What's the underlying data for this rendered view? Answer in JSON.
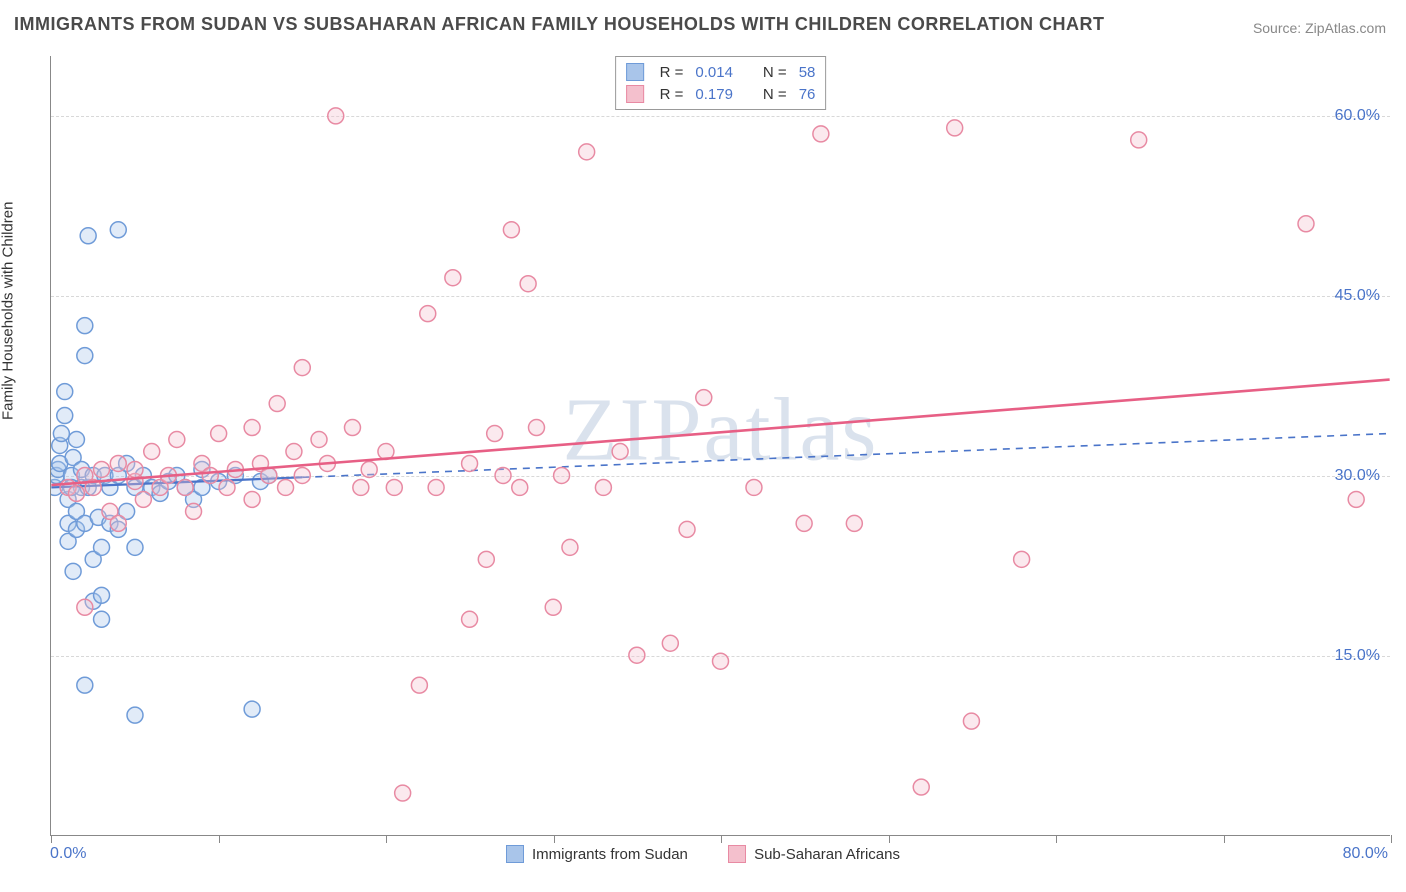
{
  "title": "IMMIGRANTS FROM SUDAN VS SUBSAHARAN AFRICAN FAMILY HOUSEHOLDS WITH CHILDREN CORRELATION CHART",
  "source_label": "Source:",
  "source_name": "ZipAtlas.com",
  "watermark": "ZIPatlas",
  "ylabel": "Family Households with Children",
  "chart": {
    "type": "scatter",
    "xlim": [
      0,
      80
    ],
    "ylim": [
      0,
      65
    ],
    "x_tick_positions": [
      0,
      10,
      20,
      30,
      40,
      50,
      60,
      70,
      80
    ],
    "x_axis_labels": {
      "left": "0.0%",
      "right": "80.0%"
    },
    "y_ticks": [
      {
        "v": 15,
        "label": "15.0%"
      },
      {
        "v": 30,
        "label": "30.0%"
      },
      {
        "v": 45,
        "label": "45.0%"
      },
      {
        "v": 60,
        "label": "60.0%"
      }
    ],
    "background_color": "#ffffff",
    "grid_color": "#d8d8d8",
    "axis_color": "#888888",
    "tick_label_color": "#4a74c9",
    "marker_radius": 8,
    "marker_fill_opacity": 0.35,
    "marker_stroke_width": 1.5,
    "series": [
      {
        "name": "Immigrants from Sudan",
        "color_fill": "#a9c5ea",
        "color_stroke": "#6f9bd8",
        "R": "0.014",
        "N": "58",
        "trend": {
          "solid_to_x": 15,
          "y0": 29.0,
          "y80": 33.5,
          "solid_color": "#4a74c9",
          "dash_color": "#4a74c9",
          "width": 2.2
        },
        "points": [
          [
            0.2,
            29
          ],
          [
            0.3,
            30
          ],
          [
            0.4,
            30.5
          ],
          [
            0.5,
            31
          ],
          [
            0.5,
            32.5
          ],
          [
            0.6,
            33.5
          ],
          [
            0.8,
            35
          ],
          [
            0.8,
            37
          ],
          [
            1.0,
            28
          ],
          [
            1.0,
            26
          ],
          [
            1.0,
            24.5
          ],
          [
            1.2,
            30
          ],
          [
            1.2,
            29
          ],
          [
            1.3,
            22
          ],
          [
            1.3,
            31.5
          ],
          [
            1.5,
            27
          ],
          [
            1.5,
            33
          ],
          [
            1.5,
            25.5
          ],
          [
            1.8,
            29
          ],
          [
            1.8,
            30.5
          ],
          [
            2.0,
            40
          ],
          [
            2.0,
            42.5
          ],
          [
            2.0,
            26
          ],
          [
            2.0,
            12.5
          ],
          [
            2.2,
            50
          ],
          [
            2.2,
            29
          ],
          [
            2.5,
            19.5
          ],
          [
            2.5,
            30
          ],
          [
            2.5,
            23
          ],
          [
            2.8,
            26.5
          ],
          [
            3.0,
            20
          ],
          [
            3.0,
            24
          ],
          [
            3.0,
            18
          ],
          [
            3.2,
            30
          ],
          [
            3.5,
            29
          ],
          [
            3.5,
            26
          ],
          [
            4.0,
            25.5
          ],
          [
            4.0,
            30
          ],
          [
            4.0,
            50.5
          ],
          [
            4.5,
            27
          ],
          [
            4.5,
            31
          ],
          [
            5.0,
            29
          ],
          [
            5.0,
            10
          ],
          [
            5.0,
            24
          ],
          [
            5.5,
            30
          ],
          [
            6.0,
            29
          ],
          [
            6.5,
            28.5
          ],
          [
            7.0,
            29.5
          ],
          [
            7.5,
            30
          ],
          [
            8.0,
            29
          ],
          [
            8.5,
            28
          ],
          [
            9.0,
            30.5
          ],
          [
            9.0,
            29
          ],
          [
            10.0,
            29.5
          ],
          [
            11.0,
            30
          ],
          [
            12.0,
            10.5
          ],
          [
            12.5,
            29.5
          ],
          [
            13.0,
            30
          ]
        ]
      },
      {
        "name": "Sub-Saharan Africans",
        "color_fill": "#f4c0cd",
        "color_stroke": "#e88aa3",
        "R": "0.179",
        "N": "76",
        "trend": {
          "solid_to_x": 80,
          "y0": 29.2,
          "y80": 38.0,
          "solid_color": "#e75f85",
          "width": 2.6
        },
        "points": [
          [
            1.0,
            29
          ],
          [
            1.5,
            28.5
          ],
          [
            2.0,
            19
          ],
          [
            2.0,
            30
          ],
          [
            2.5,
            29
          ],
          [
            3.0,
            30.5
          ],
          [
            3.5,
            27
          ],
          [
            4.0,
            31
          ],
          [
            4.0,
            26
          ],
          [
            5.0,
            29.5
          ],
          [
            5.0,
            30.5
          ],
          [
            5.5,
            28
          ],
          [
            6.0,
            32
          ],
          [
            6.5,
            29
          ],
          [
            7.0,
            30
          ],
          [
            7.5,
            33
          ],
          [
            8.0,
            29
          ],
          [
            8.5,
            27
          ],
          [
            9.0,
            31
          ],
          [
            9.5,
            30
          ],
          [
            10.0,
            33.5
          ],
          [
            10.5,
            29
          ],
          [
            11.0,
            30.5
          ],
          [
            12.0,
            34
          ],
          [
            12.0,
            28
          ],
          [
            12.5,
            31
          ],
          [
            13.0,
            30
          ],
          [
            13.5,
            36
          ],
          [
            14.0,
            29
          ],
          [
            14.5,
            32
          ],
          [
            15.0,
            39
          ],
          [
            15.0,
            30
          ],
          [
            16.0,
            33
          ],
          [
            16.5,
            31
          ],
          [
            17.0,
            60
          ],
          [
            18.0,
            34
          ],
          [
            18.5,
            29
          ],
          [
            19.0,
            30.5
          ],
          [
            20.0,
            32
          ],
          [
            20.5,
            29
          ],
          [
            21.0,
            3.5
          ],
          [
            22.0,
            12.5
          ],
          [
            22.5,
            43.5
          ],
          [
            23.0,
            29
          ],
          [
            24.0,
            46.5
          ],
          [
            25.0,
            18
          ],
          [
            25.0,
            31
          ],
          [
            26.0,
            23
          ],
          [
            26.5,
            33.5
          ],
          [
            27.0,
            30
          ],
          [
            27.5,
            50.5
          ],
          [
            28.0,
            29
          ],
          [
            28.5,
            46
          ],
          [
            29.0,
            34
          ],
          [
            30.0,
            19
          ],
          [
            30.5,
            30
          ],
          [
            31.0,
            24
          ],
          [
            32.0,
            57
          ],
          [
            33.0,
            29
          ],
          [
            34.0,
            32
          ],
          [
            35.0,
            15
          ],
          [
            37.0,
            16
          ],
          [
            38.0,
            25.5
          ],
          [
            39.0,
            36.5
          ],
          [
            40.0,
            14.5
          ],
          [
            42.0,
            29
          ],
          [
            45.0,
            26
          ],
          [
            46.0,
            58.5
          ],
          [
            48.0,
            26
          ],
          [
            52.0,
            4
          ],
          [
            54.0,
            59
          ],
          [
            55.0,
            9.5
          ],
          [
            58.0,
            23
          ],
          [
            65.0,
            58
          ],
          [
            75.0,
            51
          ],
          [
            78.0,
            28
          ]
        ]
      }
    ]
  },
  "legend_bottom": [
    {
      "swatch_fill": "#a9c5ea",
      "swatch_stroke": "#6f9bd8",
      "label": "Immigrants from Sudan"
    },
    {
      "swatch_fill": "#f4c0cd",
      "swatch_stroke": "#e88aa3",
      "label": "Sub-Saharan Africans"
    }
  ],
  "legend_top_labels": {
    "R": "R =",
    "N": "N ="
  }
}
